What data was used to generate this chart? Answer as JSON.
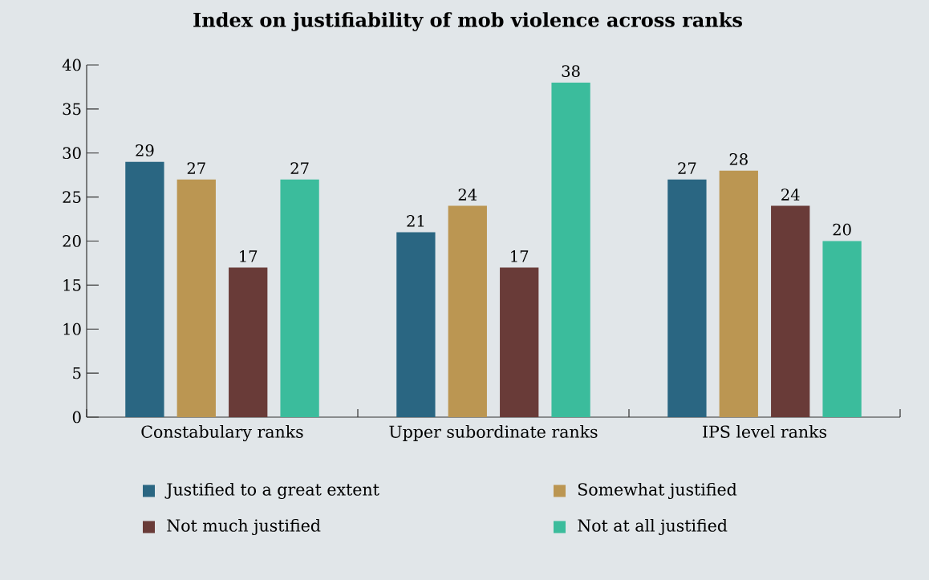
{
  "chart_data": {
    "type": "bar",
    "title": "Index on justifiability of mob violence across ranks",
    "categories": [
      "Constabulary ranks",
      "Upper subordinate ranks",
      "IPS level ranks"
    ],
    "series": [
      {
        "name": "Justified to a great extent",
        "color": "#2a6682",
        "values": [
          29,
          21,
          27
        ]
      },
      {
        "name": "Somewhat justified",
        "color": "#bb9652",
        "values": [
          27,
          24,
          28
        ]
      },
      {
        "name": "Not much justified",
        "color": "#693b38",
        "values": [
          17,
          17,
          24
        ]
      },
      {
        "name": "Not at all justified",
        "color": "#3bbc9c",
        "values": [
          27,
          38,
          20
        ]
      }
    ],
    "ylim": [
      0,
      40
    ],
    "yticks": [
      0,
      5,
      10,
      15,
      20,
      25,
      30,
      35,
      40
    ],
    "data_labels": true,
    "legend": "bottom"
  }
}
